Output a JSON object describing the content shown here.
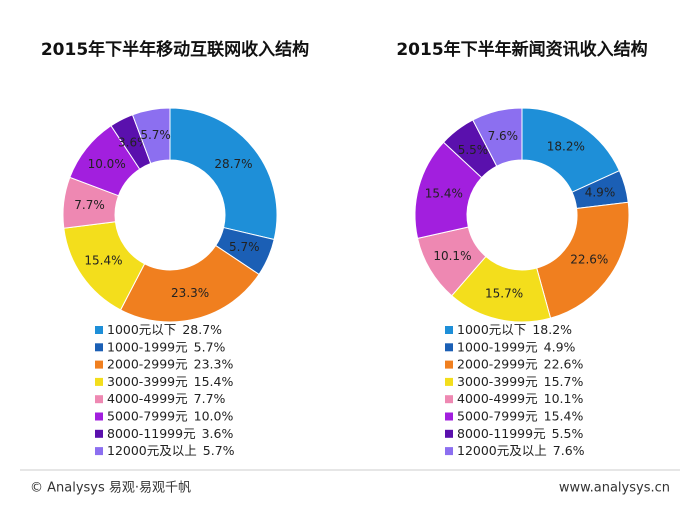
{
  "chart_data": [
    {
      "type": "donut",
      "title": "2015年下半年移动互联网收入结构",
      "categories": [
        "1000元以下",
        "1000-1999元",
        "2000-2999元",
        "3000-3999元",
        "4000-4999元",
        "5000-7999元",
        "8000-11999元",
        "12000元及以上"
      ],
      "values": [
        28.7,
        5.7,
        23.3,
        15.4,
        7.7,
        10.0,
        3.6,
        5.7
      ],
      "value_labels": [
        "28.7%",
        "5.7%",
        "23.3%",
        "15.4%",
        "7.7%",
        "10.0%",
        "3.6%",
        "5.7%"
      ],
      "colors": [
        "#1e8fd8",
        "#1b5fb5",
        "#f07f1f",
        "#f3de1c",
        "#ee88b2",
        "#a21fde",
        "#5a10ad",
        "#8c6ff0"
      ]
    },
    {
      "type": "donut",
      "title": "2015年下半年新闻资讯收入结构",
      "categories": [
        "1000元以下",
        "1000-1999元",
        "2000-2999元",
        "3000-3999元",
        "4000-4999元",
        "5000-7999元",
        "8000-11999元",
        "12000元及以上"
      ],
      "values": [
        18.2,
        4.9,
        22.6,
        15.7,
        10.1,
        15.4,
        5.5,
        7.6
      ],
      "value_labels": [
        "18.2%",
        "4.9%",
        "22.6%",
        "15.7%",
        "10.1%",
        "15.4%",
        "5.5%",
        "7.6%"
      ],
      "colors": [
        "#1e8fd8",
        "#1b5fb5",
        "#f07f1f",
        "#f3de1c",
        "#ee88b2",
        "#a21fde",
        "#5a10ad",
        "#8c6ff0"
      ]
    }
  ],
  "footer": {
    "left": "© Analysys 易观·易观千帆",
    "right": "www.analysys.cn"
  }
}
